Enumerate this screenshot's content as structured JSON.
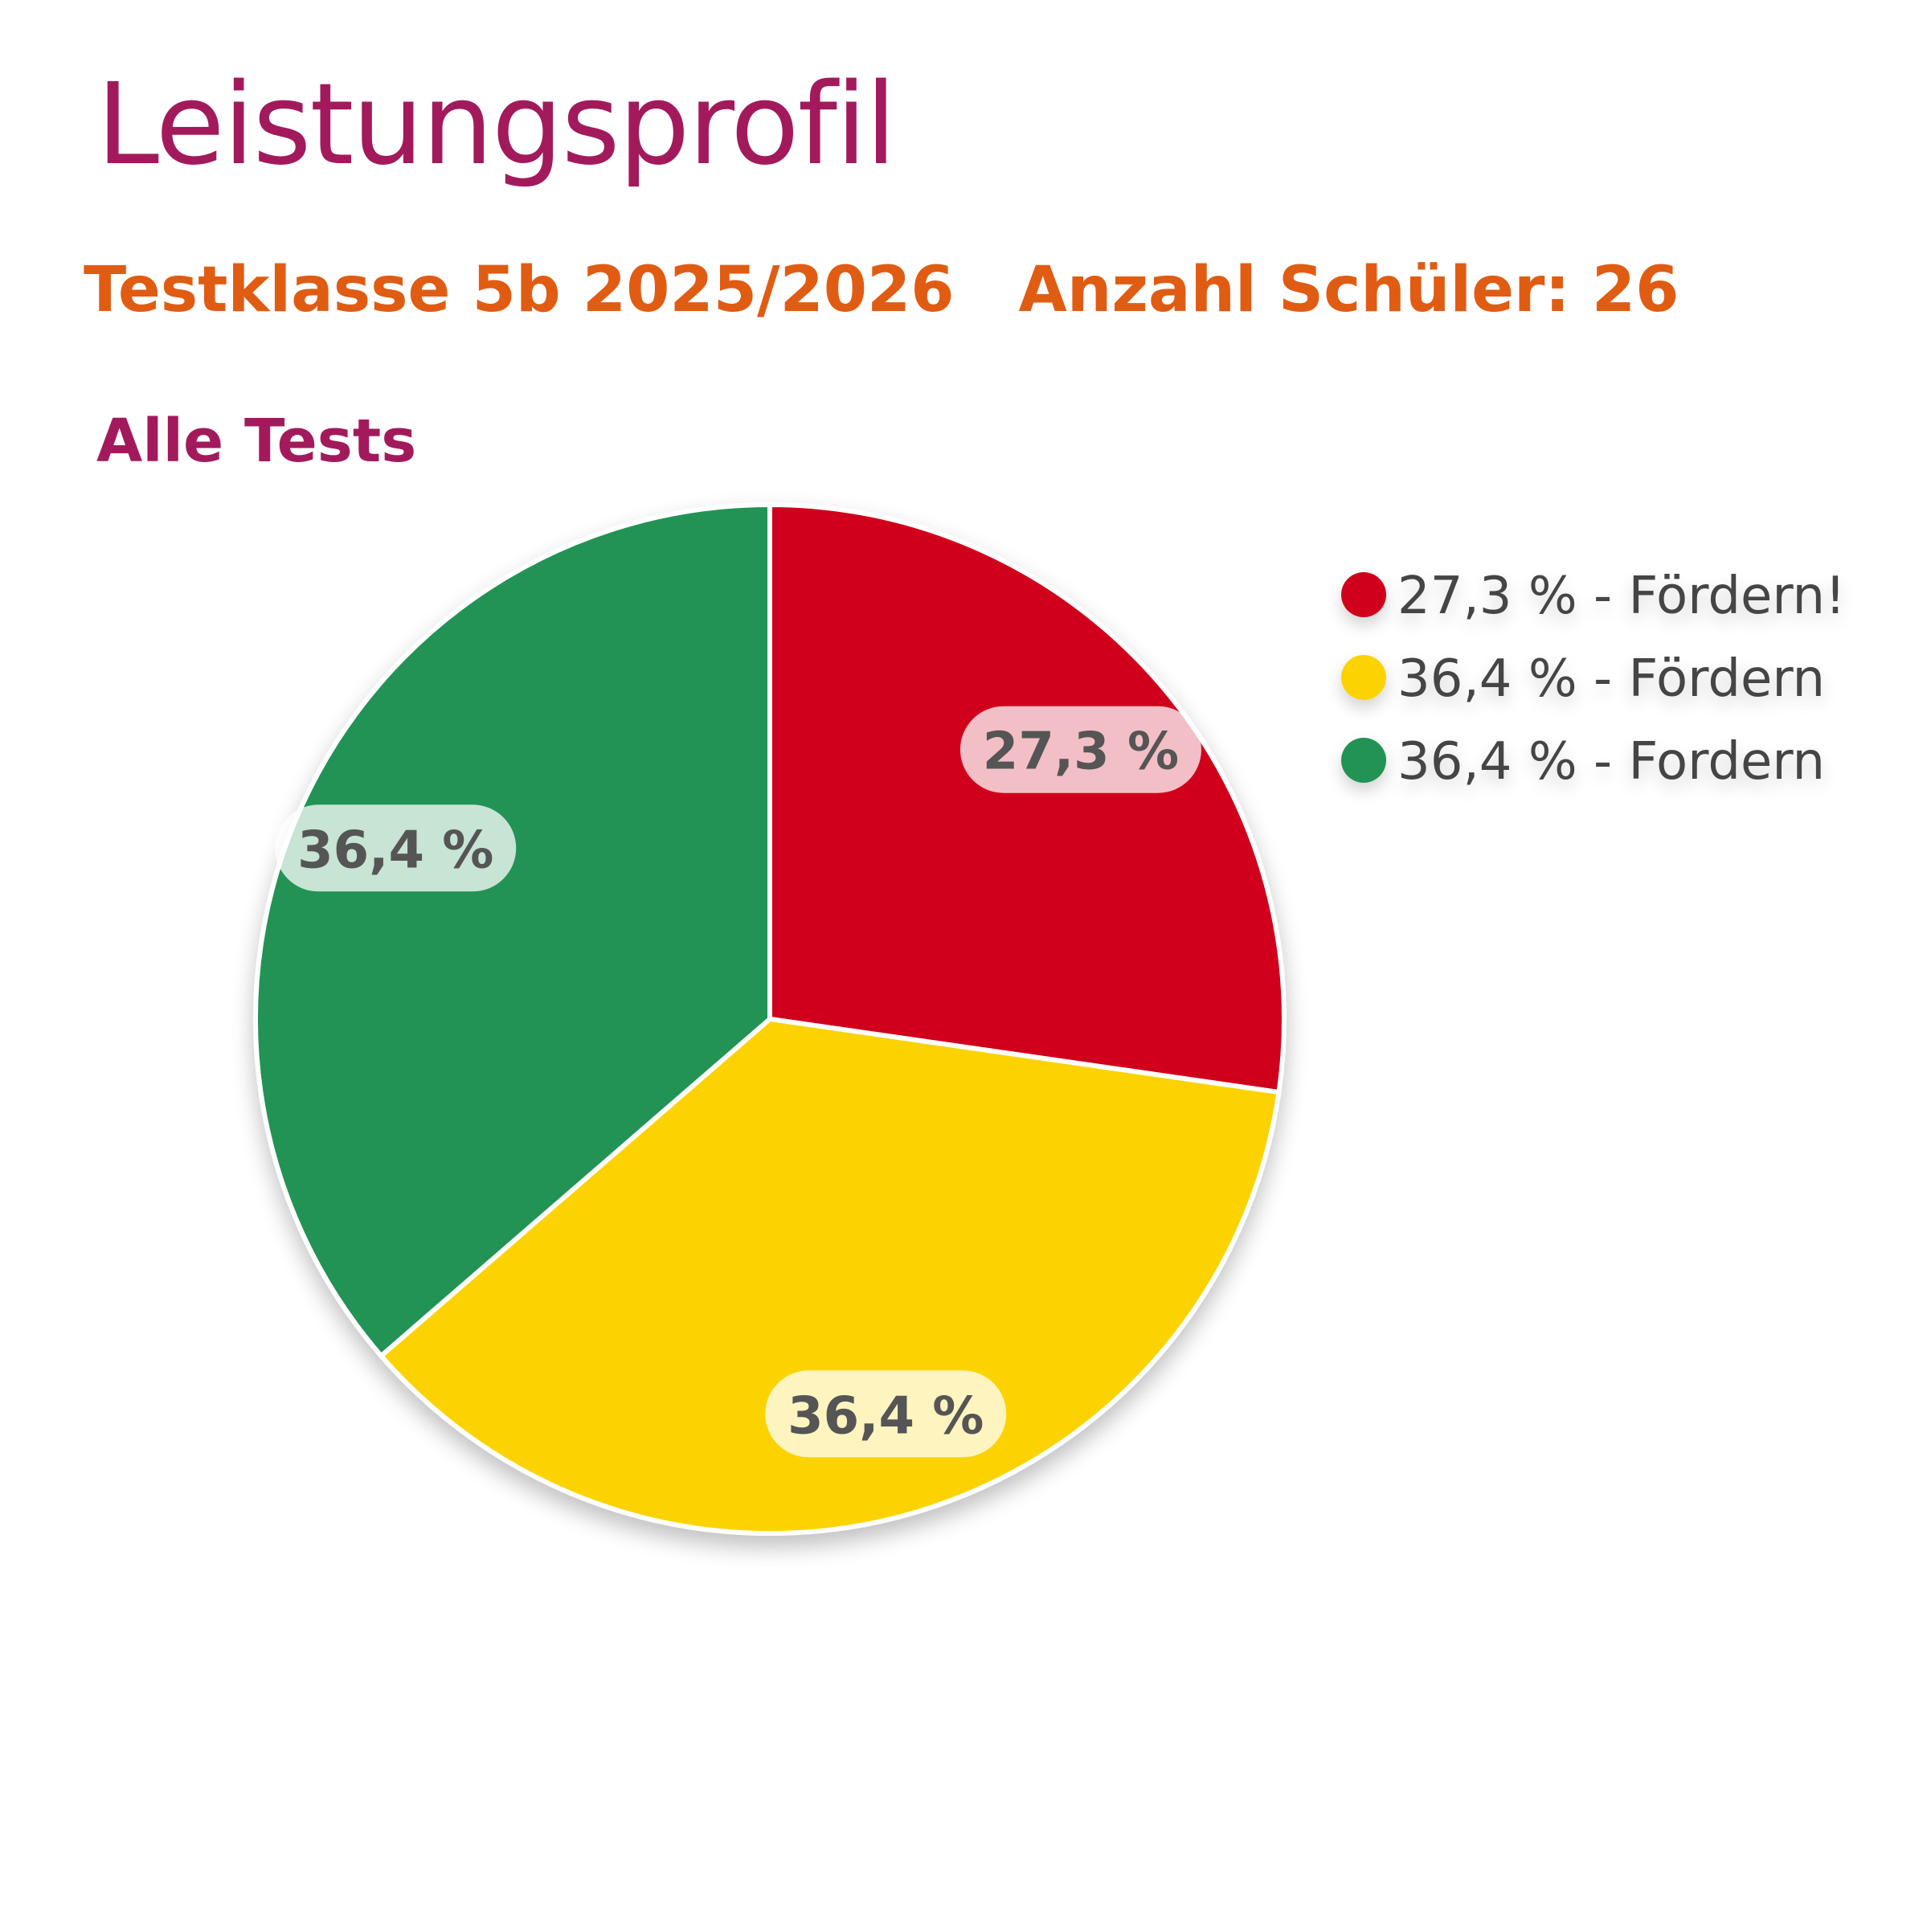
{
  "header": {
    "title": "Leistungsprofil",
    "class_name": "Testklasse 5b 2025/2026",
    "student_count_text": "Anzahl Schüler: 26"
  },
  "chart_data": {
    "type": "pie",
    "title": "Alle Tests",
    "legend_position": "top-right",
    "slices": [
      {
        "label": "27,3 % - Fördern!",
        "value": 27.3,
        "data_label": "27,3 %",
        "color": "#d0021b"
      },
      {
        "label": "36,4 % - Fördern",
        "value": 36.4,
        "data_label": "36,4 %",
        "color": "#fcd302"
      },
      {
        "label": "36,4 % - Fordern",
        "value": 36.4,
        "data_label": "36,4 %",
        "color": "#229354"
      }
    ]
  }
}
